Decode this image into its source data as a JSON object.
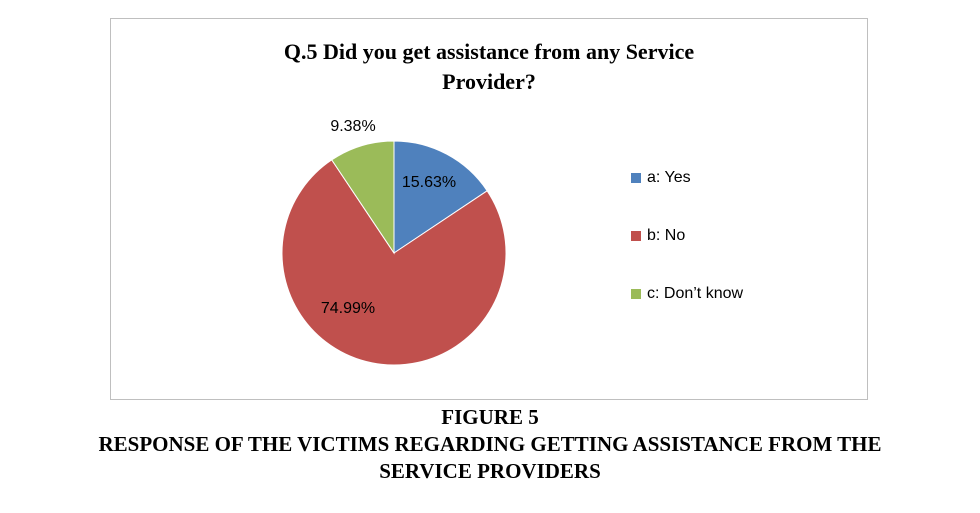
{
  "chart_data": {
    "type": "pie",
    "title_lines": [
      "Q.5 Did you get assistance from any Service",
      "Provider?"
    ],
    "categories": [
      "a: Yes",
      "b: No",
      "c: Don’t know"
    ],
    "values": [
      15.63,
      74.99,
      9.38
    ],
    "data_labels": [
      "15.63%",
      "74.99%",
      "9.38%"
    ],
    "colors": [
      "#4f81bd",
      "#c0504d",
      "#9bbb59"
    ],
    "legend_position": "right"
  },
  "caption": {
    "figure_label": "FIGURE 5",
    "line1": "RESPONSE OF THE VICTIMS REGARDING GETTING ASSISTANCE FROM THE",
    "line2": "SERVICE PROVIDERS"
  }
}
